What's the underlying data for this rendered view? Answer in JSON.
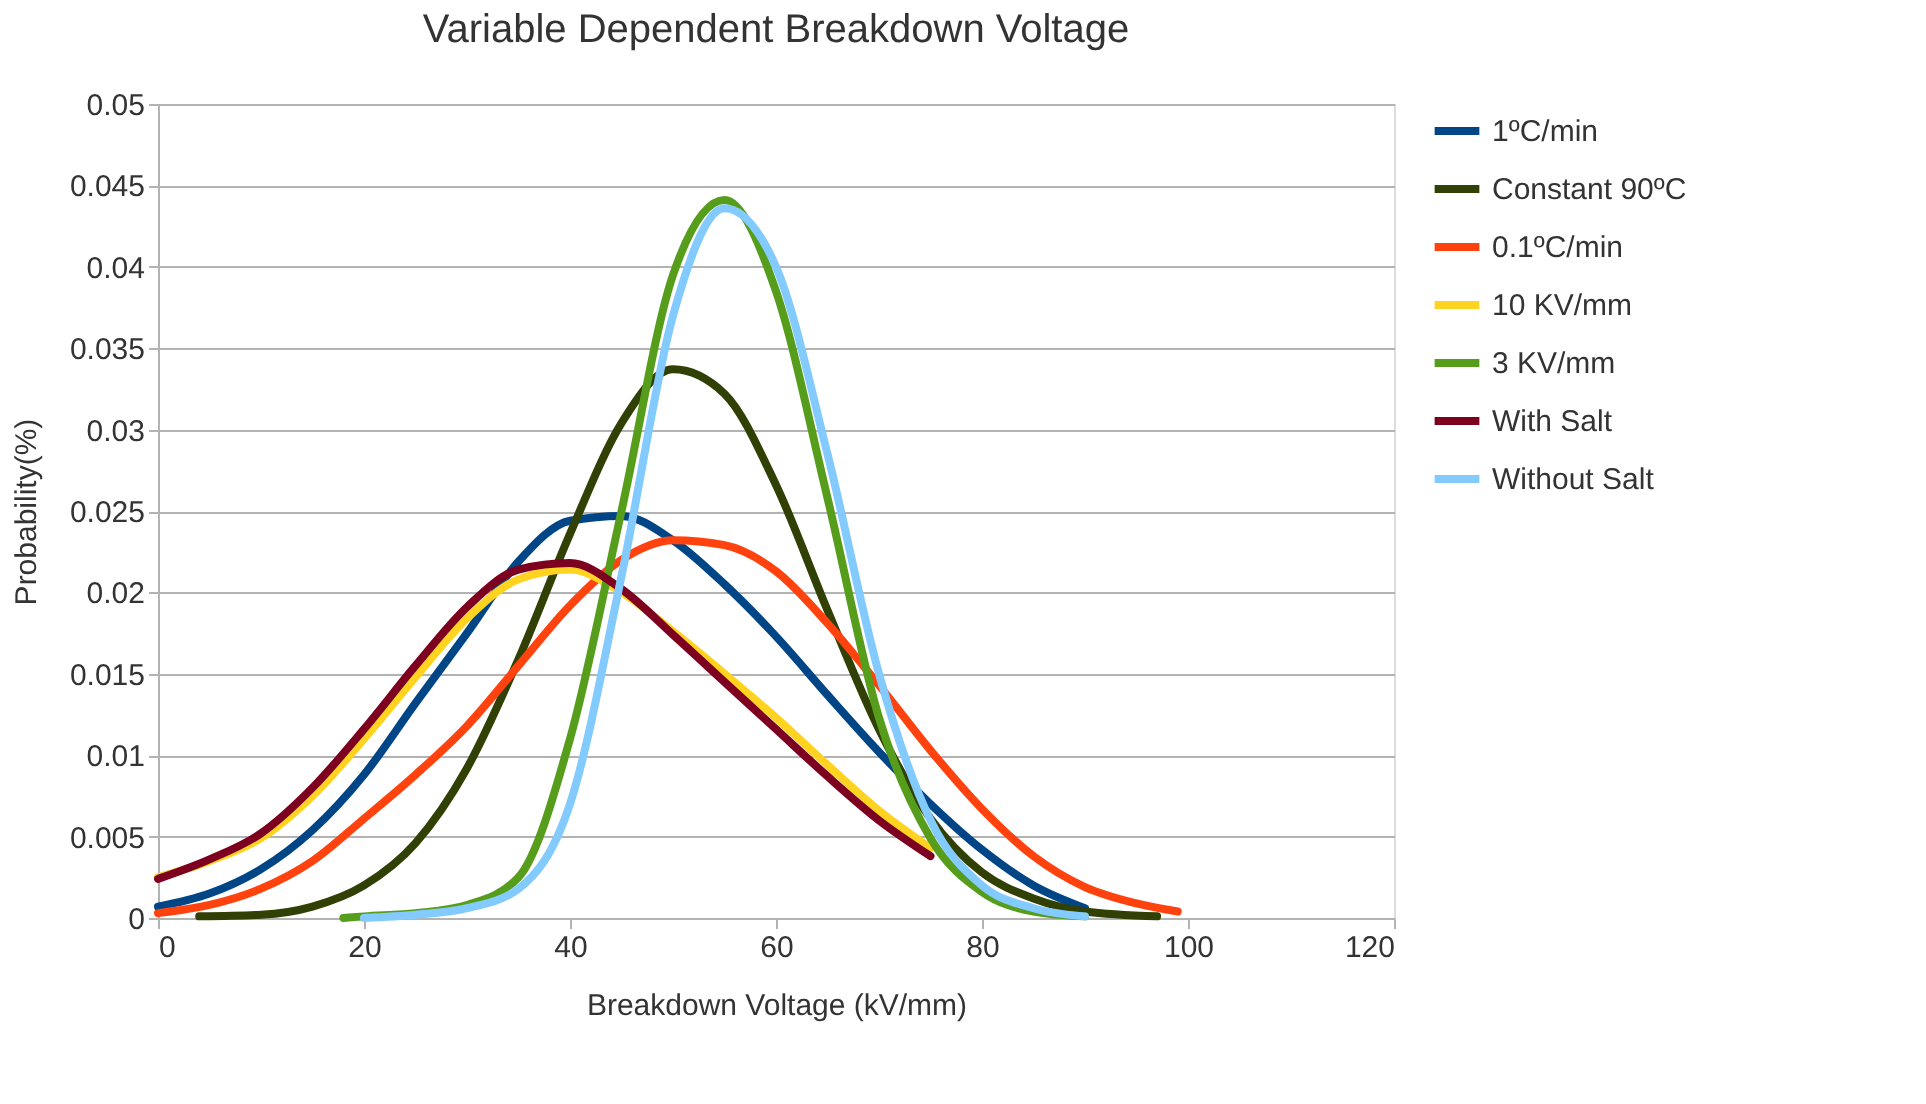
{
  "chart_data": {
    "type": "line",
    "title": "Variable Dependent Breakdown Voltage",
    "xlabel": "Breakdown Voltage (kV/mm)",
    "ylabel": "Probability(%)",
    "xlim": [
      0,
      120
    ],
    "xticks": [
      0,
      20,
      40,
      60,
      80,
      100,
      120
    ],
    "ylim": [
      0,
      0.05
    ],
    "yticks": [
      0,
      0.005,
      0.01,
      0.015,
      0.02,
      0.025,
      0.03,
      0.035,
      0.04,
      0.045,
      0.05
    ],
    "grid": "y",
    "legend": "right",
    "marker": "none",
    "line_style": "solid",
    "series": [
      {
        "name": "1ºC/min",
        "color": "#004586",
        "x": [
          0,
          5,
          10,
          15,
          20,
          25,
          30,
          35,
          40,
          45,
          50,
          55,
          60,
          65,
          70,
          75,
          80,
          85,
          90
        ],
        "values": [
          0.0007,
          0.0015,
          0.003,
          0.0054,
          0.0088,
          0.0132,
          0.0175,
          0.0219,
          0.0244,
          0.0247,
          0.0232,
          0.0205,
          0.0173,
          0.0137,
          0.0102,
          0.007,
          0.0042,
          0.002,
          0.0006
        ]
      },
      {
        "name": "Constant 90ºC",
        "color": "#314004",
        "x": [
          4,
          10,
          15,
          20,
          25,
          30,
          35,
          40,
          45,
          50,
          55,
          60,
          65,
          70,
          75,
          80,
          85,
          90,
          97
        ],
        "values": [
          0.0001,
          0.0002,
          0.0007,
          0.002,
          0.0046,
          0.0092,
          0.0159,
          0.0236,
          0.0304,
          0.0337,
          0.0322,
          0.0266,
          0.0189,
          0.0116,
          0.0061,
          0.0028,
          0.0012,
          0.0004,
          0.0001
        ]
      },
      {
        "name": "0.1ºC/min",
        "color": "#ff420e",
        "x": [
          0,
          5,
          10,
          15,
          20,
          25,
          30,
          35,
          40,
          45,
          50,
          55,
          60,
          65,
          70,
          75,
          80,
          85,
          90,
          95,
          99
        ],
        "values": [
          0.0003,
          0.0008,
          0.0018,
          0.0035,
          0.0061,
          0.0088,
          0.0118,
          0.0155,
          0.0192,
          0.022,
          0.0232,
          0.0229,
          0.0213,
          0.0181,
          0.0143,
          0.0103,
          0.0067,
          0.0038,
          0.0019,
          0.0009,
          0.0004
        ]
      },
      {
        "name": "10 KV/mm",
        "color": "#ffd320",
        "x": [
          0,
          5,
          10,
          15,
          20,
          25,
          30,
          35,
          40,
          45,
          50,
          55,
          60,
          65,
          70,
          75
        ],
        "values": [
          0.0025,
          0.0035,
          0.0049,
          0.0075,
          0.011,
          0.0148,
          0.0184,
          0.0208,
          0.0214,
          0.02,
          0.0176,
          0.015,
          0.0123,
          0.0094,
          0.0066,
          0.0043
        ]
      },
      {
        "name": "3 KV/mm",
        "color": "#579d1c",
        "x": [
          18,
          20,
          25,
          30,
          35,
          40,
          45,
          50,
          55,
          60,
          65,
          70,
          75,
          80,
          85,
          90
        ],
        "values": [
          0.0,
          0.0001,
          0.0003,
          0.0008,
          0.0025,
          0.011,
          0.025,
          0.0395,
          0.0441,
          0.0385,
          0.0258,
          0.0123,
          0.0049,
          0.0016,
          0.0004,
          0.0001
        ]
      },
      {
        "name": "With Salt",
        "color": "#7e0021",
        "x": [
          0,
          5,
          10,
          15,
          20,
          25,
          30,
          35,
          40,
          45,
          50,
          55,
          60,
          65,
          70,
          75
        ],
        "values": [
          0.0024,
          0.0036,
          0.0052,
          0.008,
          0.0116,
          0.0155,
          0.0191,
          0.0214,
          0.0218,
          0.0202,
          0.0174,
          0.0145,
          0.0116,
          0.0087,
          0.006,
          0.0038
        ]
      },
      {
        "name": "Without Salt",
        "color": "#83caff",
        "x": [
          20,
          25,
          30,
          35,
          40,
          45,
          50,
          55,
          60,
          65,
          70,
          75,
          80,
          85,
          90
        ],
        "values": [
          0.0,
          0.0002,
          0.0006,
          0.0018,
          0.007,
          0.021,
          0.037,
          0.0436,
          0.04,
          0.0285,
          0.015,
          0.006,
          0.002,
          0.0006,
          0.0001
        ]
      }
    ]
  }
}
